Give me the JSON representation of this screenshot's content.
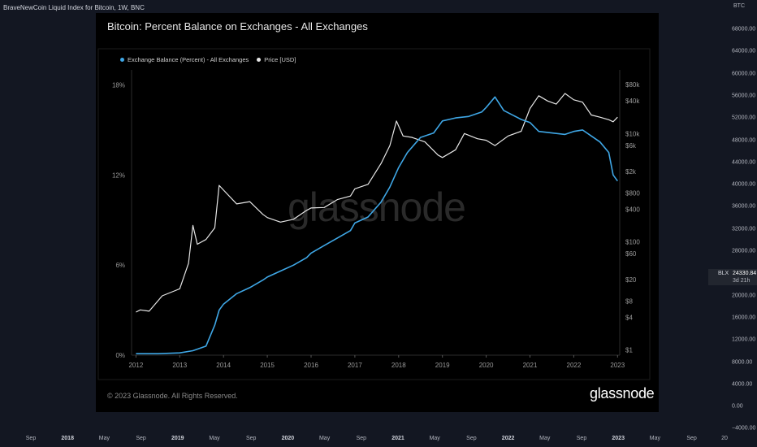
{
  "tv": {
    "title": "BraveNewCoin Liquid Index for Bitcoin, 1W, BNC",
    "axis_unit": "BTC",
    "right_ticks": [
      "68000.00",
      "64000.00",
      "60000.00",
      "56000.00",
      "52000.00",
      "48000.00",
      "44000.00",
      "40000.00",
      "36000.00",
      "32000.00",
      "28000.00",
      "24000.00",
      "20000.00",
      "16000.00",
      "12000.00",
      "8000.00",
      "4000.00",
      "0.00",
      "−4000.00"
    ],
    "price_symbol": "BLX",
    "price_value": "24330.84",
    "price_countdown": "3d 21h",
    "bottom_ticks": [
      {
        "label": "Sep",
        "year": false
      },
      {
        "label": "2018",
        "year": true
      },
      {
        "label": "May",
        "year": false
      },
      {
        "label": "Sep",
        "year": false
      },
      {
        "label": "2019",
        "year": true
      },
      {
        "label": "May",
        "year": false
      },
      {
        "label": "Sep",
        "year": false
      },
      {
        "label": "2020",
        "year": true
      },
      {
        "label": "May",
        "year": false
      },
      {
        "label": "Sep",
        "year": false
      },
      {
        "label": "2021",
        "year": true
      },
      {
        "label": "May",
        "year": false
      },
      {
        "label": "Sep",
        "year": false
      },
      {
        "label": "2022",
        "year": true
      },
      {
        "label": "May",
        "year": false
      },
      {
        "label": "Sep",
        "year": false
      },
      {
        "label": "2023",
        "year": true
      },
      {
        "label": "May",
        "year": false
      },
      {
        "label": "Sep",
        "year": false
      },
      {
        "label": "20",
        "year": false
      }
    ]
  },
  "glassnode": {
    "title": "Bitcoin: Percent Balance on Exchanges - All Exchanges",
    "copyright": "© 2023 Glassnode. All Rights Reserved.",
    "logo": "glassnode",
    "watermark": "glassnode"
  },
  "colors": {
    "balance": "#3fa7e6",
    "price": "#e6e6e6"
  },
  "chart_data": {
    "type": "line",
    "title": "Bitcoin: Percent Balance on Exchanges - All Exchanges",
    "x_ticks": [
      "2012",
      "2013",
      "2014",
      "2015",
      "2016",
      "2017",
      "2018",
      "2019",
      "2020",
      "2021",
      "2022",
      "2023"
    ],
    "y_left_ticks": [
      "0%",
      "6%",
      "12%",
      "18%"
    ],
    "y_left_range": [
      0,
      19
    ],
    "y_right_ticks": [
      "$1",
      "$4",
      "$8",
      "$20",
      "$60",
      "$100",
      "$400",
      "$800",
      "$2k",
      "$6k",
      "$10k",
      "$40k",
      "$80k"
    ],
    "y_right_scale": "log",
    "legend_position": "top-left",
    "series": [
      {
        "name": "Exchange Balance (Percent) - All Exchanges",
        "axis": "left",
        "x": [
          2012.0,
          2012.5,
          2013.0,
          2013.3,
          2013.6,
          2013.8,
          2013.9,
          2014.0,
          2014.3,
          2014.6,
          2014.9,
          2015.0,
          2015.3,
          2015.6,
          2015.9,
          2016.0,
          2016.3,
          2016.6,
          2016.9,
          2017.0,
          2017.3,
          2017.6,
          2017.8,
          2018.0,
          2018.2,
          2018.5,
          2018.8,
          2019.0,
          2019.3,
          2019.6,
          2019.9,
          2020.0,
          2020.2,
          2020.4,
          2020.6,
          2020.8,
          2021.0,
          2021.2,
          2021.5,
          2021.8,
          2022.0,
          2022.2,
          2022.4,
          2022.6,
          2022.8,
          2022.9,
          2023.0
        ],
        "y": [
          0.1,
          0.1,
          0.15,
          0.3,
          0.6,
          2.0,
          3.0,
          3.4,
          4.1,
          4.5,
          5.0,
          5.2,
          5.6,
          6.0,
          6.5,
          6.8,
          7.3,
          7.8,
          8.3,
          8.8,
          9.2,
          10.2,
          11.2,
          12.5,
          13.5,
          14.5,
          14.8,
          15.6,
          15.8,
          15.9,
          16.2,
          16.5,
          17.2,
          16.3,
          16.0,
          15.7,
          15.5,
          14.9,
          14.8,
          14.7,
          14.9,
          15.0,
          14.6,
          14.2,
          13.5,
          12.0,
          11.6
        ]
      },
      {
        "name": "Price [USD]",
        "axis": "right",
        "x": [
          2012.0,
          2012.1,
          2012.3,
          2012.6,
          2012.9,
          2013.0,
          2013.2,
          2013.3,
          2013.4,
          2013.6,
          2013.8,
          2013.9,
          2014.0,
          2014.3,
          2014.6,
          2014.9,
          2015.0,
          2015.3,
          2015.6,
          2015.9,
          2016.0,
          2016.3,
          2016.6,
          2016.9,
          2017.0,
          2017.3,
          2017.6,
          2017.8,
          2017.95,
          2018.1,
          2018.3,
          2018.6,
          2018.9,
          2019.0,
          2019.3,
          2019.5,
          2019.8,
          2020.0,
          2020.2,
          2020.5,
          2020.8,
          2021.0,
          2021.2,
          2021.4,
          2021.6,
          2021.8,
          2022.0,
          2022.2,
          2022.4,
          2022.6,
          2022.8,
          2022.9,
          2023.0
        ],
        "y": [
          5,
          5.5,
          5.2,
          10,
          12.5,
          13.5,
          40,
          200,
          90,
          110,
          180,
          1100,
          900,
          500,
          550,
          320,
          280,
          230,
          260,
          380,
          420,
          430,
          600,
          700,
          950,
          1150,
          2800,
          6000,
          17000,
          9000,
          8500,
          7000,
          4000,
          3600,
          5000,
          10000,
          8000,
          7500,
          6000,
          9000,
          11000,
          29000,
          50000,
          40000,
          35000,
          55000,
          42000,
          38000,
          22000,
          20000,
          18000,
          16500,
          20000
        ]
      }
    ]
  }
}
